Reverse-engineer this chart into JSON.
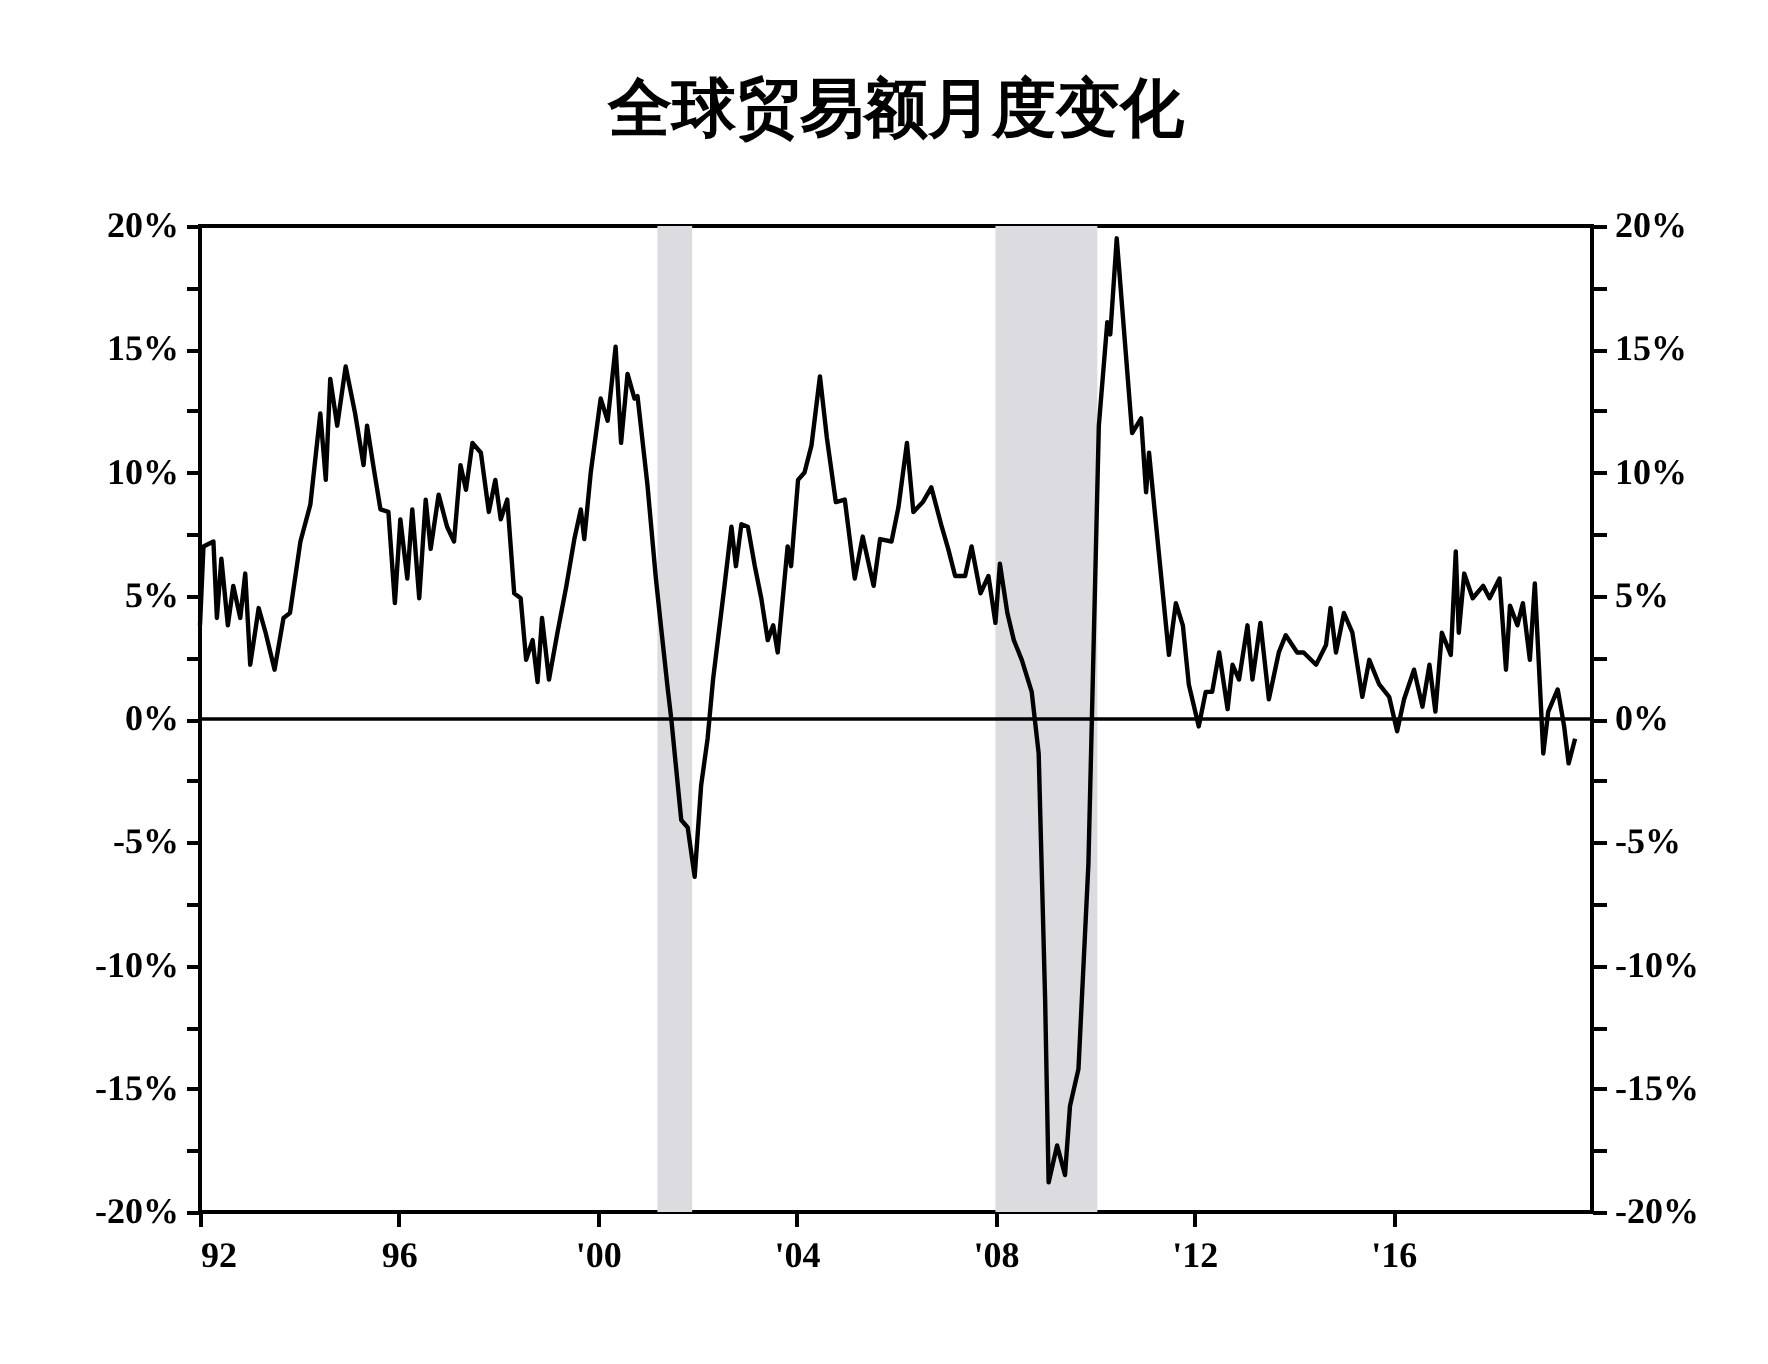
{
  "chart_data": {
    "type": "line",
    "title": "全球贸易额月度变化",
    "x": [
      1992.0,
      1992.07,
      1992.27,
      1992.34,
      1992.43,
      1992.56,
      1992.67,
      1992.81,
      1992.91,
      1993.01,
      1993.18,
      1993.32,
      1993.5,
      1993.68,
      1993.81,
      1994.02,
      1994.22,
      1994.42,
      1994.53,
      1994.62,
      1994.76,
      1994.93,
      1995.12,
      1995.29,
      1995.36,
      1995.5,
      1995.63,
      1995.79,
      1995.92,
      1996.03,
      1996.17,
      1996.27,
      1996.41,
      1996.54,
      1996.64,
      1996.8,
      1996.97,
      1997.11,
      1997.24,
      1997.35,
      1997.48,
      1997.65,
      1997.81,
      1997.94,
      1998.05,
      1998.18,
      1998.32,
      1998.45,
      1998.56,
      1998.69,
      1998.79,
      1998.88,
      1999.02,
      1999.19,
      1999.37,
      1999.53,
      1999.66,
      1999.73,
      1999.86,
      2000.06,
      2000.2,
      2000.36,
      2000.47,
      2000.6,
      2000.74,
      2000.8,
      2001.0,
      2001.17,
      2001.27,
      2001.41,
      2001.48,
      2001.68,
      2001.81,
      2001.95,
      2002.08,
      2002.21,
      2002.32,
      2002.55,
      2002.69,
      2002.78,
      2002.89,
      2003.02,
      2003.16,
      2003.29,
      2003.42,
      2003.53,
      2003.62,
      2003.82,
      2003.89,
      2004.03,
      2004.16,
      2004.3,
      2004.47,
      2004.61,
      2004.79,
      2004.97,
      2005.17,
      2005.33,
      2005.55,
      2005.68,
      2005.91,
      2006.05,
      2006.22,
      2006.35,
      2006.54,
      2006.71,
      2006.92,
      2007.05,
      2007.19,
      2007.39,
      2007.52,
      2007.7,
      2007.86,
      2008.0,
      2008.09,
      2008.24,
      2008.37,
      2008.53,
      2008.73,
      2008.87,
      2009.0,
      2009.07,
      2009.24,
      2009.4,
      2009.5,
      2009.67,
      2009.87,
      2009.94,
      2010.08,
      2010.25,
      2010.31,
      2010.44,
      2010.62,
      2010.75,
      2010.93,
      2011.03,
      2011.09,
      2011.22,
      2011.49,
      2011.63,
      2011.77,
      2011.89,
      2012.09,
      2012.23,
      2012.36,
      2012.5,
      2012.67,
      2012.77,
      2012.9,
      2013.07,
      2013.17,
      2013.33,
      2013.5,
      2013.7,
      2013.84,
      2014.07,
      2014.2,
      2014.45,
      2014.65,
      2014.74,
      2014.85,
      2015.01,
      2015.18,
      2015.38,
      2015.52,
      2015.72,
      2015.92,
      2016.08,
      2016.22,
      2016.42,
      2016.59,
      2016.73,
      2016.85,
      2016.98,
      2017.16,
      2017.26,
      2017.32,
      2017.43,
      2017.6,
      2017.81,
      2017.94,
      2018.14,
      2018.27,
      2018.35,
      2018.5,
      2018.61,
      2018.75,
      2018.85,
      2019.02,
      2019.12,
      2019.31,
      2019.44,
      2019.53,
      2019.66
    ],
    "series": [
      {
        "color": "#000000",
        "values": [
          3.8,
          7.0,
          7.2,
          4.1,
          6.5,
          3.8,
          5.4,
          4.1,
          5.9,
          2.2,
          4.5,
          3.5,
          2.0,
          4.1,
          4.3,
          7.2,
          8.7,
          12.4,
          9.7,
          13.8,
          11.9,
          14.3,
          12.4,
          10.3,
          11.9,
          10.1,
          8.5,
          8.4,
          4.7,
          8.1,
          5.7,
          8.5,
          4.9,
          8.9,
          6.9,
          9.1,
          7.8,
          7.2,
          10.3,
          9.3,
          11.2,
          10.8,
          8.4,
          9.7,
          8.1,
          8.9,
          5.1,
          4.9,
          2.4,
          3.2,
          1.5,
          4.1,
          1.6,
          3.5,
          5.4,
          7.3,
          8.5,
          7.3,
          10.0,
          13.0,
          12.1,
          15.1,
          11.2,
          14.0,
          13.0,
          13.1,
          9.5,
          5.7,
          3.8,
          1.2,
          0,
          -4.1,
          -4.4,
          -6.4,
          -2.7,
          -0.8,
          1.6,
          5.4,
          7.8,
          6.2,
          7.9,
          7.8,
          6.2,
          4.9,
          3.2,
          3.8,
          2.7,
          7.0,
          6.2,
          9.7,
          10.0,
          11.1,
          13.9,
          11.4,
          8.8,
          8.9,
          5.7,
          7.4,
          5.4,
          7.3,
          7.2,
          8.6,
          11.2,
          8.4,
          8.8,
          9.4,
          7.8,
          6.9,
          5.8,
          5.8,
          7.0,
          5.1,
          5.8,
          3.9,
          6.3,
          4.3,
          3.2,
          2.4,
          1.1,
          -1.4,
          -11.4,
          -18.8,
          -17.3,
          -18.5,
          -15.7,
          -14.2,
          -5.9,
          0,
          11.9,
          16.1,
          15.6,
          19.5,
          14.9,
          11.6,
          12.2,
          9.2,
          10.8,
          8.1,
          2.6,
          4.7,
          3.8,
          1.4,
          -0.3,
          1.1,
          1.1,
          2.7,
          0.4,
          2.2,
          1.6,
          3.8,
          1.6,
          3.9,
          0.8,
          2.7,
          3.4,
          2.7,
          2.7,
          2.2,
          3.0,
          4.5,
          2.7,
          4.3,
          3.5,
          0.9,
          2.4,
          1.4,
          0.9,
          -0.5,
          0.8,
          2.0,
          0.5,
          2.2,
          0.3,
          3.5,
          2.6,
          6.8,
          3.5,
          5.9,
          4.9,
          5.4,
          4.9,
          5.7,
          2.0,
          4.6,
          3.8,
          4.7,
          2.4,
          5.5,
          -1.4,
          0.3,
          1.2,
          -0.3,
          -1.8,
          -0.8
        ]
      }
    ],
    "xlim": [
      1992,
      2020
    ],
    "xticks": [
      {
        "value": 1992,
        "label": "92"
      },
      {
        "value": 1996,
        "label": "96"
      },
      {
        "value": 2000,
        "label": "'00"
      },
      {
        "value": 2004,
        "label": "'04"
      },
      {
        "value": 2008,
        "label": "'08"
      },
      {
        "value": 2012,
        "label": "'12"
      },
      {
        "value": 2016,
        "label": "'16"
      }
    ],
    "ylim": [
      -20,
      20
    ],
    "yticks": [
      {
        "value": -20,
        "label": "-20%"
      },
      {
        "value": -17.5,
        "label": null
      },
      {
        "value": -15,
        "label": "-15%"
      },
      {
        "value": -12.5,
        "label": null
      },
      {
        "value": -10,
        "label": "-10%"
      },
      {
        "value": -7.5,
        "label": null
      },
      {
        "value": -5,
        "label": "-5%"
      },
      {
        "value": -2.5,
        "label": null
      },
      {
        "value": 0,
        "label": "0%"
      },
      {
        "value": 2.5,
        "label": null
      },
      {
        "value": 5,
        "label": "5%"
      },
      {
        "value": 7.5,
        "label": null
      },
      {
        "value": 10,
        "label": "10%"
      },
      {
        "value": 12.5,
        "label": null
      },
      {
        "value": 15,
        "label": "15%"
      },
      {
        "value": 17.5,
        "label": null
      },
      {
        "value": 20,
        "label": "20%"
      }
    ],
    "y2lim": [
      -20,
      20
    ],
    "y2ticks": [
      {
        "value": -20,
        "label": "-20%"
      },
      {
        "value": -17.5,
        "label": null
      },
      {
        "value": -15,
        "label": "-15%"
      },
      {
        "value": -12.5,
        "label": null
      },
      {
        "value": -10,
        "label": "-10%"
      },
      {
        "value": -7.5,
        "label": null
      },
      {
        "value": -5,
        "label": "-5%"
      },
      {
        "value": -2.5,
        "label": null
      },
      {
        "value": 0,
        "label": "0%"
      },
      {
        "value": 2.5,
        "label": null
      },
      {
        "value": 5,
        "label": "5%"
      },
      {
        "value": 7.5,
        "label": null
      },
      {
        "value": 10,
        "label": "10%"
      },
      {
        "value": 12.5,
        "label": null
      },
      {
        "value": 15,
        "label": "15%"
      },
      {
        "value": 17.5,
        "label": null
      },
      {
        "value": 20,
        "label": "20%"
      }
    ],
    "bands": [
      {
        "axis": "x",
        "from": 2001.2,
        "to": 2001.9,
        "color": "#dcdce0"
      },
      {
        "axis": "x",
        "from": 2008.0,
        "to": 2010.05,
        "color": "#dcdce0"
      }
    ],
    "ref_lines": [
      {
        "axis": "y",
        "value": 0,
        "color": "#000000"
      }
    ],
    "line_style": "solid"
  }
}
